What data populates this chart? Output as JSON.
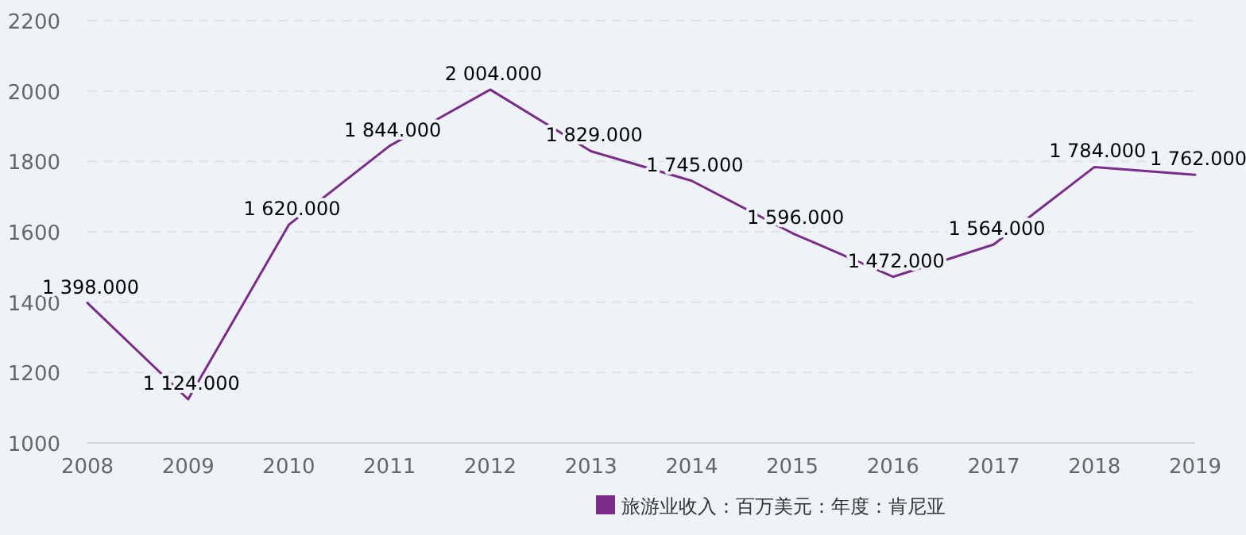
{
  "chart_data": {
    "type": "line",
    "x": [
      2008,
      2009,
      2010,
      2011,
      2012,
      2013,
      2014,
      2015,
      2016,
      2017,
      2018,
      2019
    ],
    "series": [
      {
        "name": "旅游业收入：百万美元：年度：肯尼亚",
        "color": "#7b2c89",
        "values": [
          1398,
          1124,
          1620,
          1844,
          2004,
          1829,
          1745,
          1596,
          1472,
          1564,
          1784,
          1762
        ],
        "value_labels": [
          "1 398.000",
          "1 124.000",
          "1 620.000",
          "1 844.000",
          "2 004.000",
          "1 829.000",
          "1 745.000",
          "1 596.000",
          "1 472.000",
          "1 564.000",
          "1 784.000",
          "1 762.000"
        ]
      }
    ],
    "xlim": [
      2008,
      2019
    ],
    "xticks": [
      2008,
      2009,
      2010,
      2011,
      2012,
      2013,
      2014,
      2015,
      2016,
      2017,
      2018,
      2019
    ],
    "ylim": [
      1000,
      2200
    ],
    "yticks": [
      1000,
      1200,
      1400,
      1600,
      1800,
      2000,
      2200
    ],
    "grid": "y",
    "legend": "bottom",
    "line_style": "solid"
  }
}
